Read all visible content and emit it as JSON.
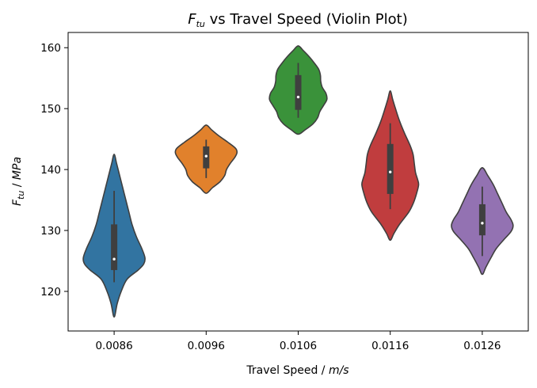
{
  "chart_data": {
    "type": "violin",
    "title": {
      "prefix": "F",
      "subscript": "tu",
      "rest": " vs Travel Speed (Violin Plot)"
    },
    "xlabel": {
      "text": "Travel Speed / ",
      "unit": "m/s"
    },
    "ylabel": {
      "prefix": "F",
      "subscript": "tu",
      "rest": " / ",
      "unit": "MPa"
    },
    "categories": [
      "0.0086",
      "0.0096",
      "0.0106",
      "0.0116",
      "0.0126"
    ],
    "ylim": [
      113.5,
      162.5
    ],
    "yticks": [
      120,
      130,
      140,
      150,
      160
    ],
    "grid": false,
    "colors": [
      "#3274a1",
      "#e1812c",
      "#3a923a",
      "#c03d3e",
      "#9372b2"
    ],
    "series": [
      {
        "category": "0.0086",
        "min": 115.8,
        "max": 142.5,
        "profile": [
          [
            115.8,
            0
          ],
          [
            118,
            0.1
          ],
          [
            120,
            0.23
          ],
          [
            122,
            0.42
          ],
          [
            123.5,
            0.78
          ],
          [
            124.5,
            0.96
          ],
          [
            125.5,
            1.0
          ],
          [
            127,
            0.9
          ],
          [
            129,
            0.72
          ],
          [
            131,
            0.58
          ],
          [
            133,
            0.48
          ],
          [
            135,
            0.38
          ],
          [
            137,
            0.28
          ],
          [
            139,
            0.18
          ],
          [
            141,
            0.08
          ],
          [
            142.5,
            0
          ]
        ],
        "q1": 123.5,
        "median": 125.3,
        "q3": 131.0,
        "whisker_low": 121.5,
        "whisker_high": 136.5
      },
      {
        "category": "0.0096",
        "min": 136.1,
        "max": 147.3,
        "profile": [
          [
            136.1,
            0
          ],
          [
            137,
            0.2
          ],
          [
            138,
            0.45
          ],
          [
            139,
            0.6
          ],
          [
            140,
            0.66
          ],
          [
            141,
            0.78
          ],
          [
            142,
            0.93
          ],
          [
            142.8,
            1.0
          ],
          [
            143.5,
            0.95
          ],
          [
            144.5,
            0.7
          ],
          [
            145.5,
            0.42
          ],
          [
            146.5,
            0.18
          ],
          [
            147.3,
            0
          ]
        ],
        "q1": 140.2,
        "median": 142.2,
        "q3": 143.8,
        "whisker_low": 138.6,
        "whisker_high": 144.9
      },
      {
        "category": "0.0106",
        "min": 145.8,
        "max": 160.3,
        "profile": [
          [
            145.8,
            0
          ],
          [
            146.5,
            0.22
          ],
          [
            147.5,
            0.48
          ],
          [
            148.5,
            0.63
          ],
          [
            149.5,
            0.7
          ],
          [
            150.5,
            0.82
          ],
          [
            151.5,
            0.93
          ],
          [
            152.5,
            0.9
          ],
          [
            153.5,
            0.78
          ],
          [
            154.5,
            0.73
          ],
          [
            155.5,
            0.72
          ],
          [
            156.5,
            0.66
          ],
          [
            157.5,
            0.52
          ],
          [
            158.5,
            0.36
          ],
          [
            159.5,
            0.17
          ],
          [
            160.3,
            0
          ]
        ],
        "q1": 149.8,
        "median": 151.9,
        "q3": 155.5,
        "whisker_low": 148.5,
        "whisker_high": 157.5
      },
      {
        "category": "0.0116",
        "min": 128.4,
        "max": 152.9,
        "profile": [
          [
            128.4,
            0
          ],
          [
            129.5,
            0.12
          ],
          [
            131,
            0.3
          ],
          [
            133,
            0.6
          ],
          [
            134.5,
            0.75
          ],
          [
            136,
            0.85
          ],
          [
            137.5,
            0.92
          ],
          [
            138.5,
            0.88
          ],
          [
            139.5,
            0.82
          ],
          [
            141,
            0.78
          ],
          [
            142.5,
            0.74
          ],
          [
            144,
            0.64
          ],
          [
            146,
            0.46
          ],
          [
            148,
            0.3
          ],
          [
            150,
            0.17
          ],
          [
            151.5,
            0.08
          ],
          [
            152.9,
            0
          ]
        ],
        "q1": 136.0,
        "median": 139.6,
        "q3": 144.2,
        "whisker_low": 133.5,
        "whisker_high": 147.6
      },
      {
        "category": "0.0126",
        "min": 122.8,
        "max": 140.3,
        "profile": [
          [
            122.8,
            0
          ],
          [
            124,
            0.12
          ],
          [
            125.5,
            0.28
          ],
          [
            127,
            0.45
          ],
          [
            128.5,
            0.7
          ],
          [
            129.8,
            0.93
          ],
          [
            130.8,
            1.0
          ],
          [
            131.8,
            0.93
          ],
          [
            133,
            0.78
          ],
          [
            134.5,
            0.64
          ],
          [
            136,
            0.5
          ],
          [
            137.5,
            0.36
          ],
          [
            139,
            0.18
          ],
          [
            140.3,
            0
          ]
        ],
        "q1": 129.2,
        "median": 131.2,
        "q3": 134.3,
        "whisker_low": 125.8,
        "whisker_high": 137.2
      }
    ]
  }
}
